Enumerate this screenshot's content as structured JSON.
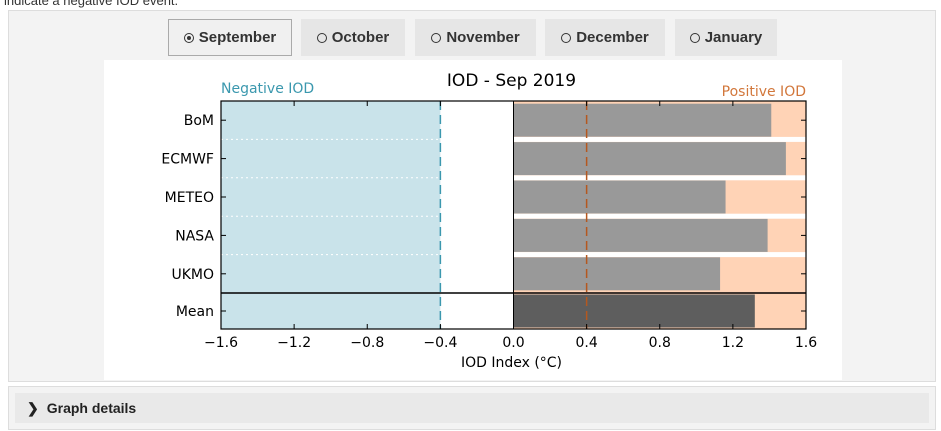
{
  "intro_text": "indicate a negative IOD event.",
  "tabs": [
    {
      "label": "September",
      "active": true
    },
    {
      "label": "October",
      "active": false
    },
    {
      "label": "November",
      "active": false
    },
    {
      "label": "December",
      "active": false
    },
    {
      "label": "January",
      "active": false
    }
  ],
  "details": {
    "label": "Graph details",
    "icon": "chevron-right-icon"
  },
  "chart_data": {
    "type": "bar",
    "orientation": "horizontal",
    "title": "IOD - Sep 2019",
    "xlabel": "IOD Index (°C)",
    "xlim": [
      -1.6,
      1.6
    ],
    "xticks": [
      -1.6,
      -1.2,
      -0.8,
      -0.4,
      0.0,
      0.4,
      0.8,
      1.2,
      1.6
    ],
    "xtick_labels": [
      "−1.6",
      "−1.2",
      "−0.8",
      "−0.4",
      "0.0",
      "0.4",
      "0.8",
      "1.2",
      "1.6"
    ],
    "categories": [
      "BoM",
      "ECMWF",
      "METEO",
      "NASA",
      "UKMO",
      "Mean"
    ],
    "values": [
      1.41,
      1.49,
      1.16,
      1.39,
      1.13,
      1.32
    ],
    "negative_threshold": -0.4,
    "positive_threshold": 0.4,
    "negative_label": "Negative IOD",
    "positive_label": "Positive IOD",
    "colors": {
      "negative_region": "#c9e3ea",
      "positive_region": "#ffd3b6",
      "model_bar": "#999999",
      "mean_bar": "#5e5e5e",
      "negative_line": "#3b98ae",
      "positive_line": "#b5581f",
      "negative_label": "#3b98ae",
      "positive_label": "#d2773b"
    }
  }
}
